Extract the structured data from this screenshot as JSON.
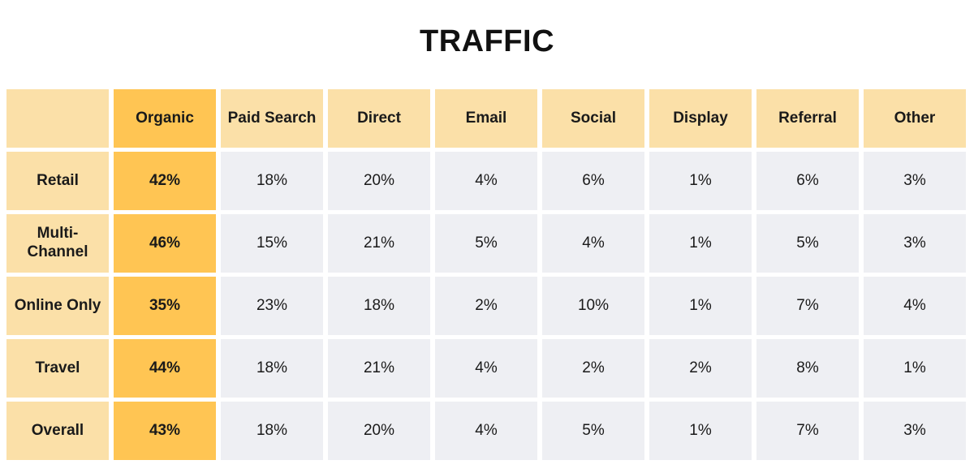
{
  "chart_data": {
    "type": "table",
    "title": "TRAFFIC",
    "columns": [
      "Organic",
      "Paid Search",
      "Direct",
      "Email",
      "Social",
      "Display",
      "Referral",
      "Other"
    ],
    "rows": [
      {
        "label": "Retail",
        "values": [
          "42%",
          "18%",
          "20%",
          "4%",
          "6%",
          "1%",
          "6%",
          "3%"
        ]
      },
      {
        "label": "Multi-\nChannel",
        "values": [
          "46%",
          "15%",
          "21%",
          "5%",
          "4%",
          "1%",
          "5%",
          "3%"
        ]
      },
      {
        "label": "Online Only",
        "values": [
          "35%",
          "23%",
          "18%",
          "2%",
          "10%",
          "1%",
          "7%",
          "4%"
        ]
      },
      {
        "label": "Travel",
        "values": [
          "44%",
          "18%",
          "21%",
          "4%",
          "2%",
          "2%",
          "8%",
          "1%"
        ]
      },
      {
        "label": "Overall",
        "values": [
          "43%",
          "18%",
          "20%",
          "4%",
          "5%",
          "1%",
          "7%",
          "3%"
        ]
      }
    ],
    "highlight_column": "Organic",
    "colors": {
      "header": "#fbe0a8",
      "highlight": "#ffc553",
      "cell": "#eeeff3",
      "text": "#1a1a1a"
    }
  }
}
